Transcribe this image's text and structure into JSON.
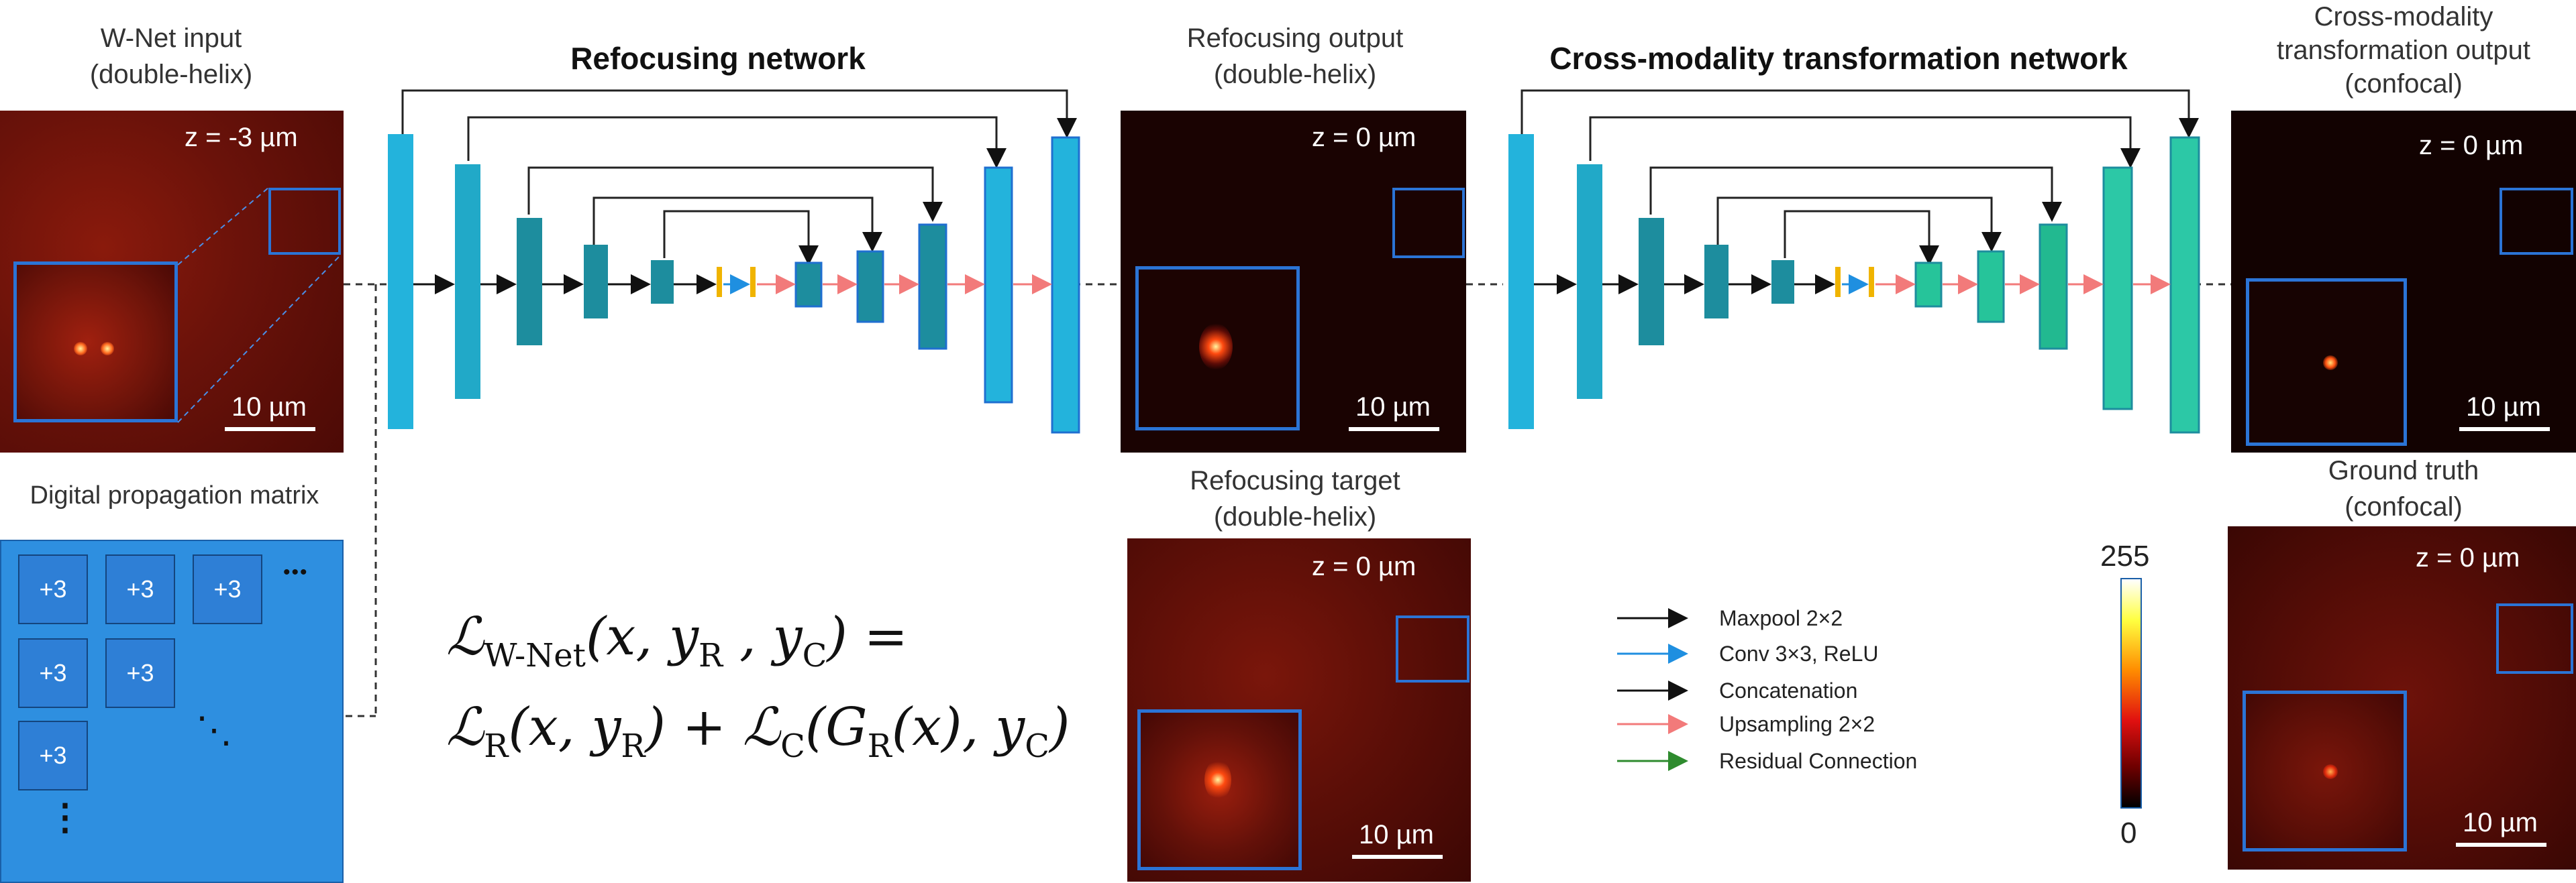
{
  "inputs": {
    "wnet_caption_line1": "W-Net input",
    "wnet_caption_line2": "(double-helix)",
    "wnet_z": "z = -3 µm",
    "wnet_scale": "10 µm",
    "dpm_caption": "Digital propagation matrix",
    "dpm_cells": [
      "+3",
      "+3",
      "+3",
      "+3",
      "+3",
      "+3"
    ],
    "dpm_dots_h": "•••",
    "dpm_dots_diag": "⋱",
    "dpm_dots_v": "⋮"
  },
  "refocus_net": {
    "title": "Refocusing network"
  },
  "refocus_output": {
    "caption_line1": "Refocusing output",
    "caption_line2": "(double-helix)",
    "z": "z = 0 µm",
    "scale": "10 µm"
  },
  "refocus_target": {
    "caption_line1": "Refocusing target",
    "caption_line2": "(double-helix)",
    "z": "z = 0 µm",
    "scale": "10 µm"
  },
  "cross_net": {
    "title": "Cross-modality transformation network"
  },
  "cross_output": {
    "caption_line1": "Cross-modality",
    "caption_line2": "transformation output",
    "caption_line3": "(confocal)",
    "z": "z = 0 µm",
    "scale": "10 µm"
  },
  "ground_truth": {
    "caption_line1": "Ground truth",
    "caption_line2": "(confocal)",
    "z": "z = 0 µm",
    "scale": "10 µm"
  },
  "colorbar": {
    "max": "255",
    "min": "0"
  },
  "legend": {
    "items": [
      {
        "label": "Maxpool 2×2",
        "color": "#111111"
      },
      {
        "label": "Conv 3×3, ReLU",
        "color": "#1f8fe0"
      },
      {
        "label": "Concatenation",
        "color": "#111111"
      },
      {
        "label": "Upsampling 2×2",
        "color": "#f27a7a"
      },
      {
        "label": "Residual Connection",
        "color": "#2e8b2e"
      }
    ]
  },
  "equation": {
    "L": "ℒ",
    "lhs_sub": "W-Net",
    "lhs_args": "(x, y",
    "R": "R",
    "comma_y": " , y",
    "C": "C",
    "close_eq": ") =",
    "rhs1_args": "(x, y",
    "close_plus": ") + ",
    "rhs2_args": "(G",
    "rhs2_mid": "(x), y",
    "rhs2_end": ")"
  },
  "colors": {
    "block_blue": "#23b3dc",
    "block_teal": "#1d8d9e",
    "block_green": "#26c49a",
    "inset_border": "#2b74d6",
    "panel_red": "#5a0b06"
  }
}
